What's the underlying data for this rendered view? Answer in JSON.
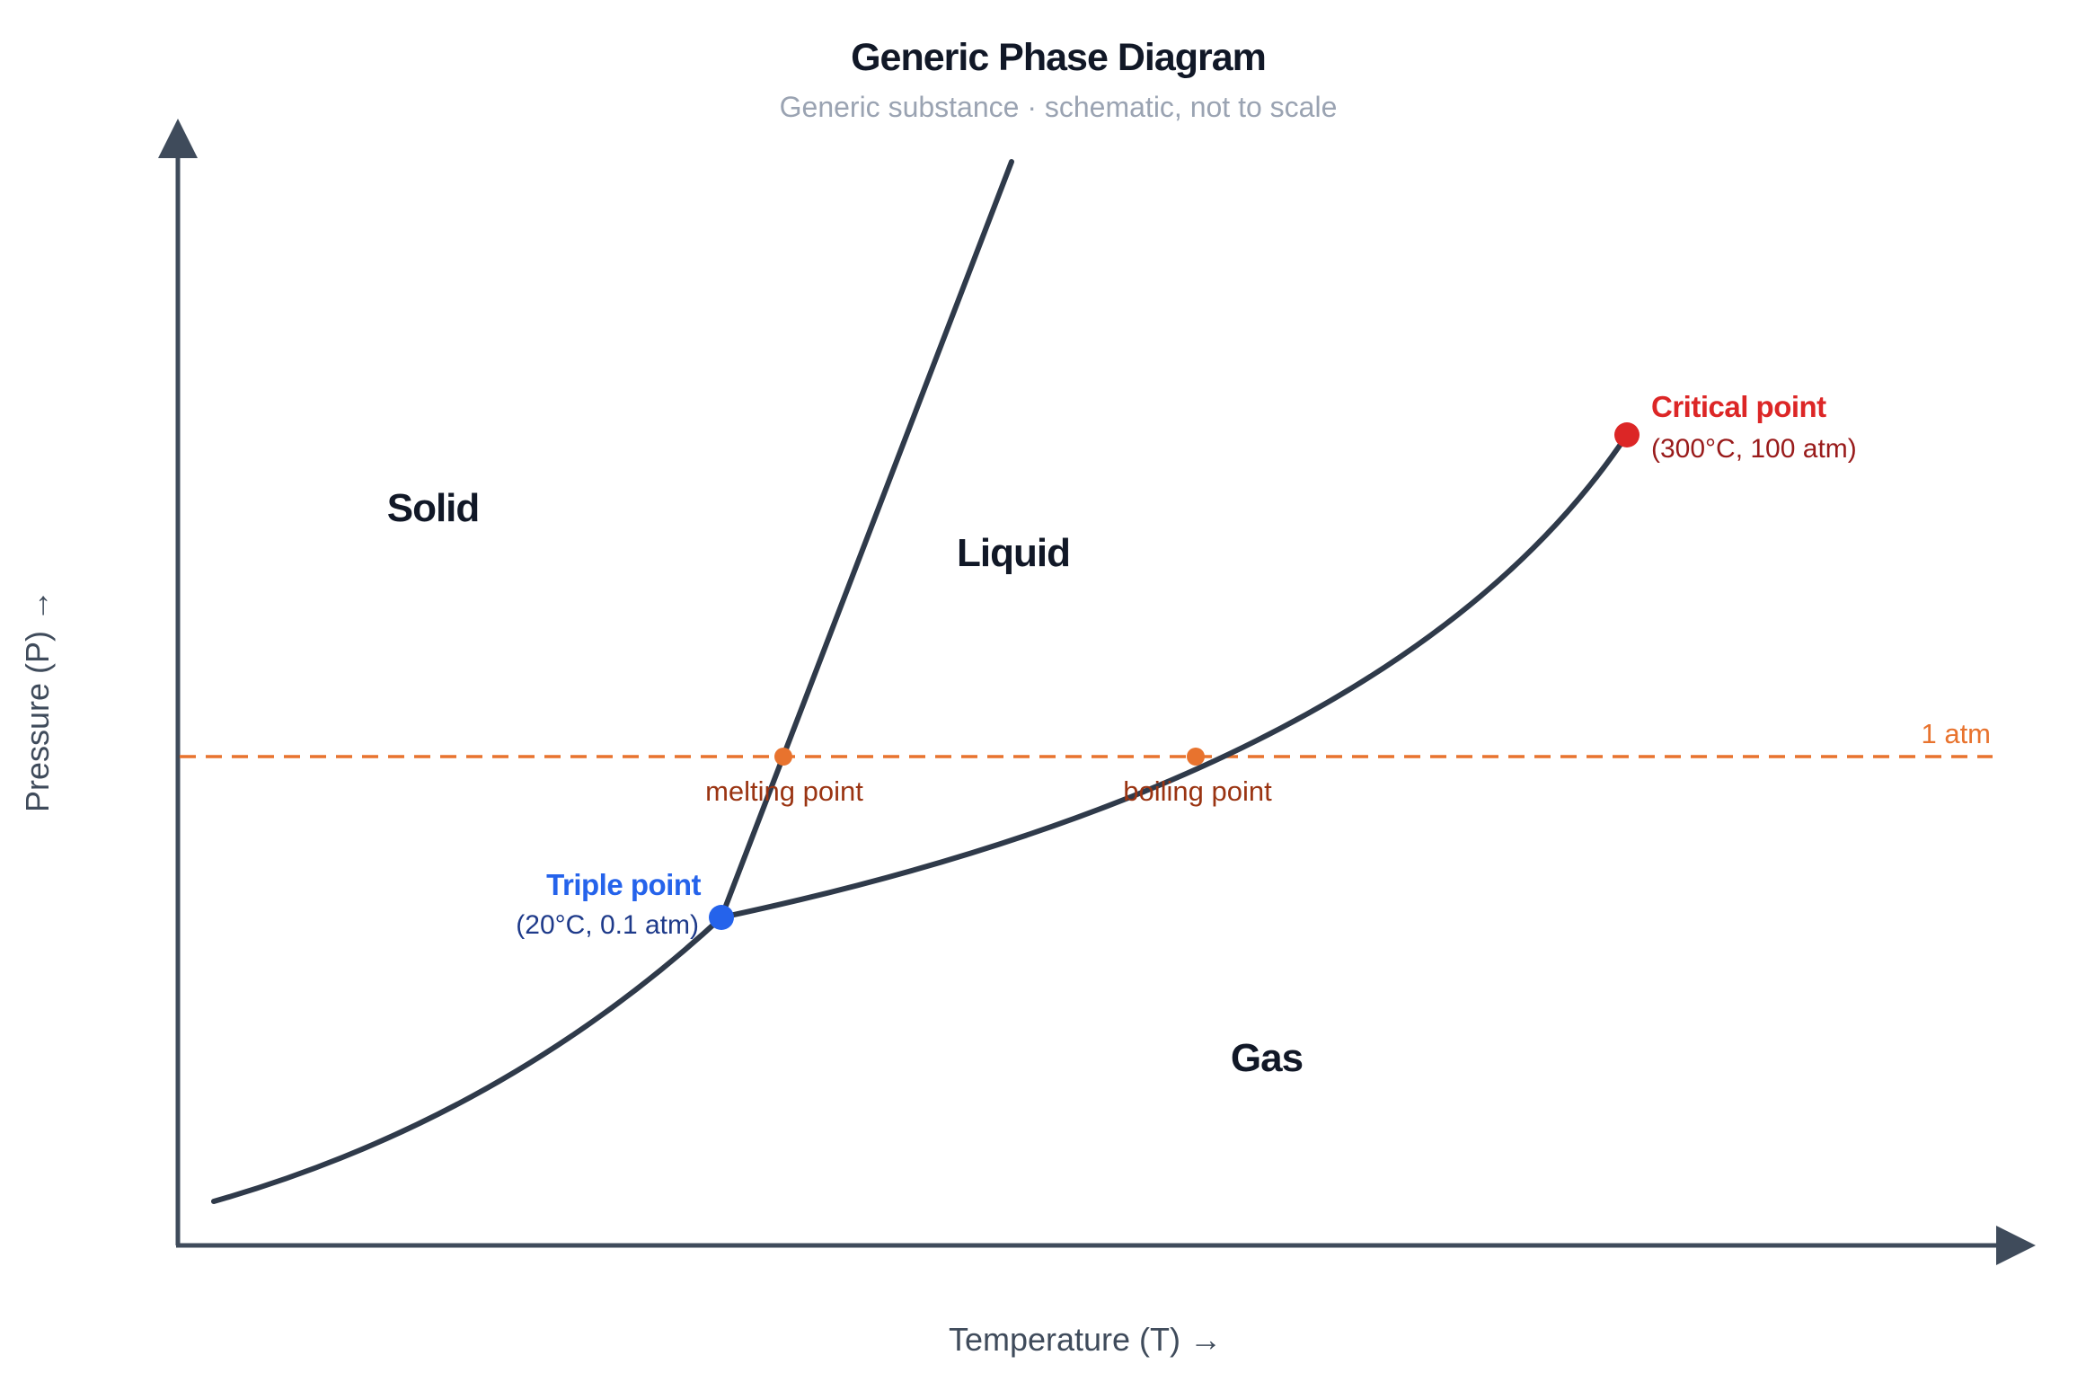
{
  "header": {
    "title": "Generic Phase Diagram",
    "subtitle": "Generic substance · schematic, not to scale"
  },
  "axes": {
    "x_label": "Temperature (T) →",
    "y_label": "Pressure (P) →"
  },
  "regions": {
    "solid": "Solid",
    "liquid": "Liquid",
    "gas": "Gas"
  },
  "reference_line": {
    "label": "1 atm"
  },
  "points": {
    "triple": {
      "title": "Triple point",
      "value": "(20°C, 0.1 atm)"
    },
    "critical": {
      "title": "Critical point",
      "value": "(300°C, 100 atm)"
    },
    "melting": {
      "label": "melting point"
    },
    "boiling": {
      "label": "boiling point"
    }
  },
  "colors": {
    "curve": "#2f3a4a",
    "axis": "#3f4b5b",
    "title": "#111827",
    "subtitle": "#9aa3b2",
    "reference": "#e8732e",
    "reference_text": "#9a3412",
    "triple_point": "#2563eb",
    "triple_text": "#1e3a8a",
    "critical_point": "#dc2626",
    "critical_text": "#991b1b"
  }
}
